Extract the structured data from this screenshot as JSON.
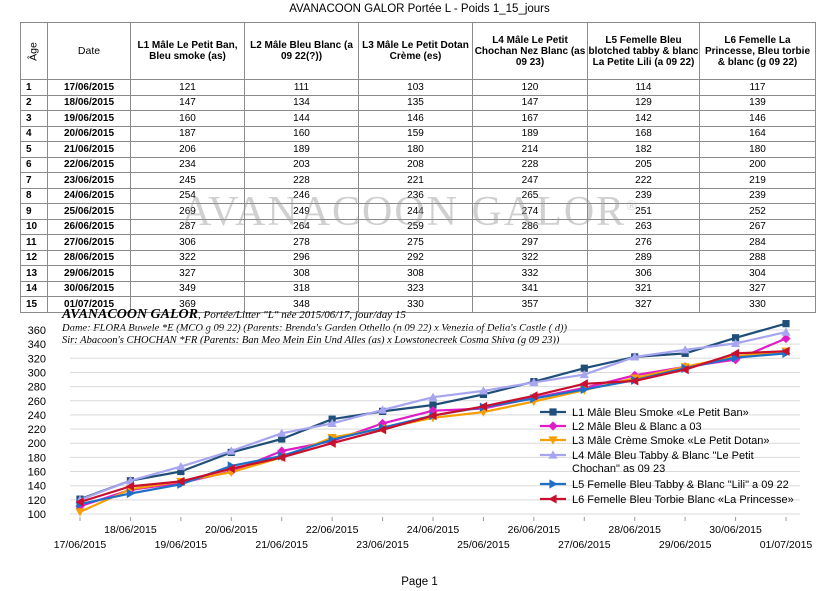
{
  "document": {
    "title": "AVANACOON GALOR Portée L - Poids 1_15_jours",
    "watermark": "AVANACOON GALOR",
    "watermark_mark": "®",
    "page_label": "Page 1"
  },
  "table": {
    "headers": {
      "age": "Âge",
      "date": "Date",
      "l1": "L1 Mâle Le Petit Ban, Bleu smoke (as)",
      "l2": "L2 Mâle Bleu Blanc  (a 09 22(?))",
      "l3": "L3 Mâle Le Petit Dotan Crème  (es)",
      "l4": "L4 Mâle Le Petit Chochan Nez Blanc (as 09 23)",
      "l5": "L5 Femelle Bleu blotched tabby & blanc La Petite Lili (a 09 22)",
      "l6": "L6 Femelle La Princesse, Bleu torbie & blanc (g 09 22)"
    },
    "rows": [
      {
        "age": "1",
        "date": "17/06/2015",
        "l1": "121",
        "l2": "111",
        "l3": "103",
        "l4": "120",
        "l5": "114",
        "l6": "117"
      },
      {
        "age": "2",
        "date": "18/06/2015",
        "l1": "147",
        "l2": "134",
        "l3": "135",
        "l4": "147",
        "l5": "129",
        "l6": "139"
      },
      {
        "age": "3",
        "date": "19/06/2015",
        "l1": "160",
        "l2": "144",
        "l3": "146",
        "l4": "167",
        "l5": "142",
        "l6": "146"
      },
      {
        "age": "4",
        "date": "20/06/2015",
        "l1": "187",
        "l2": "160",
        "l3": "159",
        "l4": "189",
        "l5": "168",
        "l6": "164"
      },
      {
        "age": "5",
        "date": "21/06/2015",
        "l1": "206",
        "l2": "189",
        "l3": "180",
        "l4": "214",
        "l5": "182",
        "l6": "180"
      },
      {
        "age": "6",
        "date": "22/06/2015",
        "l1": "234",
        "l2": "203",
        "l3": "208",
        "l4": "228",
        "l5": "205",
        "l6": "200"
      },
      {
        "age": "7",
        "date": "23/06/2015",
        "l1": "245",
        "l2": "228",
        "l3": "221",
        "l4": "247",
        "l5": "222",
        "l6": "219"
      },
      {
        "age": "8",
        "date": "24/06/2015",
        "l1": "254",
        "l2": "246",
        "l3": "236",
        "l4": "265",
        "l5": "239",
        "l6": "239"
      },
      {
        "age": "9",
        "date": "25/06/2015",
        "l1": "269",
        "l2": "249",
        "l3": "244",
        "l4": "274",
        "l5": "251",
        "l6": "252"
      },
      {
        "age": "10",
        "date": "26/06/2015",
        "l1": "287",
        "l2": "264",
        "l3": "259",
        "l4": "286",
        "l5": "263",
        "l6": "267"
      },
      {
        "age": "11",
        "date": "27/06/2015",
        "l1": "306",
        "l2": "278",
        "l3": "275",
        "l4": "297",
        "l5": "276",
        "l6": "284"
      },
      {
        "age": "12",
        "date": "28/06/2015",
        "l1": "322",
        "l2": "296",
        "l3": "292",
        "l4": "322",
        "l5": "289",
        "l6": "288"
      },
      {
        "age": "13",
        "date": "29/06/2015",
        "l1": "327",
        "l2": "308",
        "l3": "308",
        "l4": "332",
        "l5": "306",
        "l6": "304"
      },
      {
        "age": "14",
        "date": "30/06/2015",
        "l1": "349",
        "l2": "318",
        "l3": "323",
        "l4": "341",
        "l5": "321",
        "l6": "327"
      },
      {
        "age": "15",
        "date": "01/07/2015",
        "l1": "369",
        "l2": "348",
        "l3": "330",
        "l4": "357",
        "l5": "327",
        "l6": "330"
      }
    ]
  },
  "chart_header": {
    "brand": "AVANACOON GALOR",
    "subtitle": ", Portée/Litter \"L\" née 2015/06/17, jour/day 15",
    "dame": "Dame: FLORA Buwele *E (MCO g 09 22) (Parents: Brenda's Garden Othello (n 09 22) x Venezia of Delia's Castle ( d))",
    "sir": "Sir: Abacoon's CHOCHAN *FR (Parents: Ban Meo Mein Ein Und Alles (as) x Lowstonecreek Cosma Shiva (g 09 23))"
  },
  "chart_data": {
    "type": "line",
    "x": [
      "17/06/2015",
      "18/06/2015",
      "19/06/2015",
      "20/06/2015",
      "21/06/2015",
      "22/06/2015",
      "23/06/2015",
      "24/06/2015",
      "25/06/2015",
      "26/06/2015",
      "27/06/2015",
      "28/06/2015",
      "29/06/2015",
      "30/06/2015",
      "01/07/2015"
    ],
    "ylim": [
      100,
      360
    ],
    "yticks": [
      100,
      120,
      140,
      160,
      180,
      200,
      220,
      240,
      260,
      280,
      300,
      320,
      340,
      360
    ],
    "legend_position": "right",
    "series": [
      {
        "name": "L1 Mâle Bleu Smoke «Le Petit Ban»",
        "color": "#1f4e79",
        "marker": "square",
        "values": [
          121,
          147,
          160,
          187,
          206,
          234,
          245,
          254,
          269,
          287,
          306,
          322,
          327,
          349,
          369
        ]
      },
      {
        "name": "L2 Mâle Bleu & Blanc a 03",
        "color": "#e01cc8",
        "marker": "diamond",
        "values": [
          111,
          134,
          144,
          160,
          189,
          203,
          228,
          246,
          249,
          264,
          278,
          296,
          308,
          318,
          348
        ]
      },
      {
        "name": "L3 Mâle Crème Smoke «Le Petit Dotan»",
        "color": "#f5a000",
        "marker": "triangle-down",
        "values": [
          103,
          135,
          146,
          159,
          180,
          208,
          221,
          236,
          244,
          259,
          275,
          292,
          308,
          323,
          330
        ]
      },
      {
        "name": "L4 Mâle Bleu Tabby & Blanc \"Le Petit Chochan\" as 09 23",
        "color": "#a7a5f0",
        "marker": "triangle-up",
        "values": [
          120,
          147,
          167,
          189,
          214,
          228,
          247,
          265,
          274,
          286,
          297,
          322,
          332,
          341,
          357
        ]
      },
      {
        "name": "L5 Femelle Bleu Tabby & Blanc \"Lili\" a 09 22",
        "color": "#1e6fc7",
        "marker": "triangle-right",
        "values": [
          114,
          129,
          142,
          168,
          182,
          205,
          222,
          239,
          251,
          263,
          276,
          289,
          306,
          321,
          327
        ]
      },
      {
        "name": "L6 Femelle Bleu Torbie Blanc «La Princesse»",
        "color": "#c8102e",
        "marker": "triangle-left",
        "values": [
          117,
          139,
          146,
          164,
          180,
          200,
          219,
          239,
          252,
          267,
          284,
          288,
          304,
          327,
          330
        ]
      }
    ]
  }
}
